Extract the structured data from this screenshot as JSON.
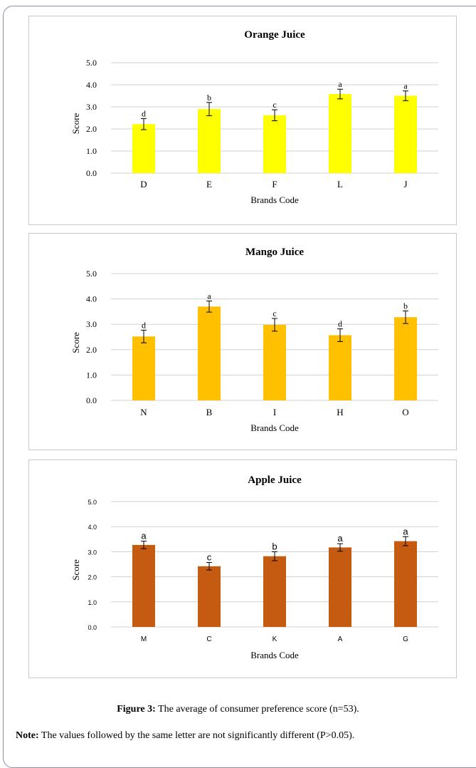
{
  "figure": {
    "caption_label": "Figure 3:",
    "caption_text": " The average of consumer preference score (n=53).",
    "note_label": "Note:",
    "note_text": " The values followed by the same letter are not significantly different (P>0.05)."
  },
  "chart_data": [
    {
      "type": "bar",
      "title": "Orange Juice",
      "xlabel": "Brands Code",
      "ylabel": "Score",
      "ylim": [
        0,
        5
      ],
      "yticks": [
        "0.0",
        "1.0",
        "2.0",
        "3.0",
        "4.0",
        "5.0"
      ],
      "grid": true,
      "bar_color": "#ffff00",
      "categories": [
        "D",
        "E",
        "F",
        "L",
        "J"
      ],
      "values": [
        2.22,
        2.9,
        2.62,
        3.58,
        3.5
      ],
      "errors": [
        0.25,
        0.3,
        0.25,
        0.22,
        0.22
      ],
      "letters": [
        "d",
        "b",
        "c",
        "a",
        "a"
      ],
      "letter_color": "#000000"
    },
    {
      "type": "bar",
      "title": "Mango Juice",
      "xlabel": "Brands Code",
      "ylabel": "Score",
      "ylim": [
        0,
        5
      ],
      "yticks": [
        "0.0",
        "1.0",
        "2.0",
        "3.0",
        "4.0",
        "5.0"
      ],
      "grid": true,
      "bar_color": "#ffc000",
      "categories": [
        "N",
        "B",
        "I",
        "H",
        "O"
      ],
      "values": [
        2.52,
        3.7,
        2.98,
        2.57,
        3.28
      ],
      "errors": [
        0.25,
        0.22,
        0.25,
        0.25,
        0.25
      ],
      "letters": [
        "d",
        "a",
        "c",
        "d",
        "b"
      ],
      "letter_color": "#000000"
    },
    {
      "type": "bar",
      "title": "Apple Juice",
      "xlabel": "Brands Code",
      "ylabel": "Score",
      "ylim": [
        0,
        5
      ],
      "yticks": [
        "0.0",
        "1.0",
        "2.0",
        "3.0",
        "4.0",
        "5.0"
      ],
      "grid": true,
      "bar_color": "#c55a11",
      "categories": [
        "M",
        "C",
        "K",
        "A",
        "G"
      ],
      "values": [
        3.27,
        2.42,
        2.82,
        3.17,
        3.42
      ],
      "errors": [
        0.15,
        0.15,
        0.18,
        0.15,
        0.18
      ],
      "letters": [
        "a",
        "c",
        "b",
        "a",
        "a"
      ],
      "letter_color": "#000000"
    }
  ]
}
